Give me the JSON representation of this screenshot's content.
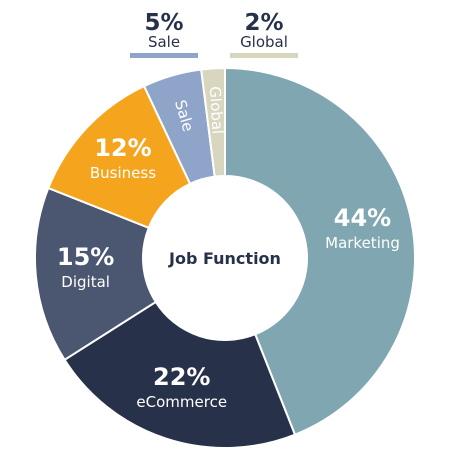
{
  "chart_data": {
    "type": "pie",
    "center_label": "Job Function",
    "slices": [
      {
        "name": "Marketing",
        "value": 44,
        "label": "44%",
        "color": "#7fa6b1",
        "label_mode": "inside"
      },
      {
        "name": "eCommerce",
        "value": 22,
        "label": "22%",
        "color": "#27324a",
        "label_mode": "inside"
      },
      {
        "name": "Digital",
        "value": 15,
        "label": "15%",
        "color": "#4b5670",
        "label_mode": "inside"
      },
      {
        "name": "Business",
        "value": 12,
        "label": "12%",
        "color": "#f5a51d",
        "label_mode": "inside"
      },
      {
        "name": "Sale",
        "value": 5,
        "label": "5%",
        "color": "#8ea4c9",
        "label_mode": "outside-top"
      },
      {
        "name": "Global",
        "value": 2,
        "label": "2%",
        "color": "#d9d6c0",
        "label_mode": "outside-top"
      }
    ]
  }
}
